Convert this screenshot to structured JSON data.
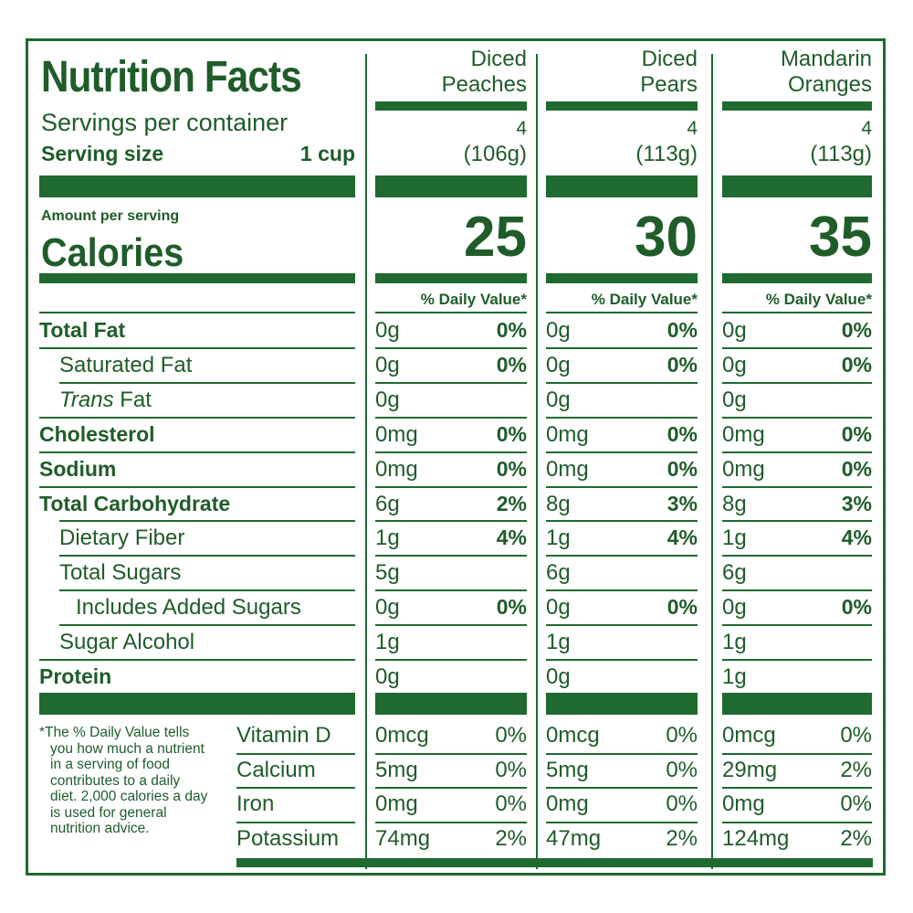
{
  "header": {
    "title": "Nutrition Facts",
    "servings_label": "Servings per container",
    "serving_size_label": "Serving size",
    "serving_size_value": "1 cup",
    "amount_per_serving": "Amount per serving",
    "calories_label": "Calories",
    "dv_header": "% Daily Value*"
  },
  "products": [
    {
      "name_line1": "Diced",
      "name_line2": "Peaches",
      "servings": "4",
      "serving_weight": "(106g)",
      "calories": "25"
    },
    {
      "name_line1": "Diced",
      "name_line2": "Pears",
      "servings": "4",
      "serving_weight": "(113g)",
      "calories": "30"
    },
    {
      "name_line1": "Mandarin",
      "name_line2": "Oranges",
      "servings": "4",
      "serving_weight": "(113g)",
      "calories": "35"
    }
  ],
  "nutrients": [
    {
      "label": "Total Fat",
      "values": [
        [
          "0g",
          "0%"
        ],
        [
          "0g",
          "0%"
        ],
        [
          "0g",
          "0%"
        ]
      ]
    },
    {
      "label": "Saturated Fat",
      "values": [
        [
          "0g",
          "0%"
        ],
        [
          "0g",
          "0%"
        ],
        [
          "0g",
          "0%"
        ]
      ]
    },
    {
      "label_italic": "Trans",
      "label_rest": " Fat",
      "values": [
        [
          "0g",
          ""
        ],
        [
          "0g",
          ""
        ],
        [
          "0g",
          ""
        ]
      ]
    },
    {
      "label": "Cholesterol",
      "values": [
        [
          "0mg",
          "0%"
        ],
        [
          "0mg",
          "0%"
        ],
        [
          "0mg",
          "0%"
        ]
      ]
    },
    {
      "label": "Sodium",
      "values": [
        [
          "0mg",
          "0%"
        ],
        [
          "0mg",
          "0%"
        ],
        [
          "0mg",
          "0%"
        ]
      ]
    },
    {
      "label": "Total Carbohydrate",
      "values": [
        [
          "6g",
          "2%"
        ],
        [
          "8g",
          "3%"
        ],
        [
          "8g",
          "3%"
        ]
      ]
    },
    {
      "label": "Dietary Fiber",
      "values": [
        [
          "1g",
          "4%"
        ],
        [
          "1g",
          "4%"
        ],
        [
          "1g",
          "4%"
        ]
      ]
    },
    {
      "label": "Total Sugars",
      "values": [
        [
          "5g",
          ""
        ],
        [
          "6g",
          ""
        ],
        [
          "6g",
          ""
        ]
      ]
    },
    {
      "label": "Includes Added Sugars",
      "values": [
        [
          "0g",
          "0%"
        ],
        [
          "0g",
          "0%"
        ],
        [
          "0g",
          "0%"
        ]
      ]
    },
    {
      "label": "Sugar Alcohol",
      "values": [
        [
          "1g",
          ""
        ],
        [
          "1g",
          ""
        ],
        [
          "1g",
          ""
        ]
      ]
    },
    {
      "label": "Protein",
      "values": [
        [
          "0g",
          ""
        ],
        [
          "0g",
          ""
        ],
        [
          "1g",
          ""
        ]
      ]
    }
  ],
  "vitamins": [
    {
      "label": "Vitamin D",
      "values": [
        [
          "0mcg",
          "0%"
        ],
        [
          "0mcg",
          "0%"
        ],
        [
          "0mcg",
          "0%"
        ]
      ]
    },
    {
      "label": "Calcium",
      "values": [
        [
          "5mg",
          "0%"
        ],
        [
          "5mg",
          "0%"
        ],
        [
          "29mg",
          "2%"
        ]
      ]
    },
    {
      "label": "Iron",
      "values": [
        [
          "0mg",
          "0%"
        ],
        [
          "0mg",
          "0%"
        ],
        [
          "0mg",
          "0%"
        ]
      ]
    },
    {
      "label": "Potassium",
      "values": [
        [
          "74mg",
          "2%"
        ],
        [
          "47mg",
          "2%"
        ],
        [
          "124mg",
          "2%"
        ]
      ]
    }
  ],
  "footnote": {
    "line1": "*The % Daily Value tells",
    "line2": "you how much a nutrient",
    "line3": "in a serving of food",
    "line4": "contributes to a daily",
    "line5": "diet. 2,000 calories a day",
    "line6": "is used for general",
    "line7": "nutrition advice."
  },
  "colors": {
    "ink": "#1f5c2a",
    "rule": "#1f6a30",
    "background": "#ffffff"
  }
}
